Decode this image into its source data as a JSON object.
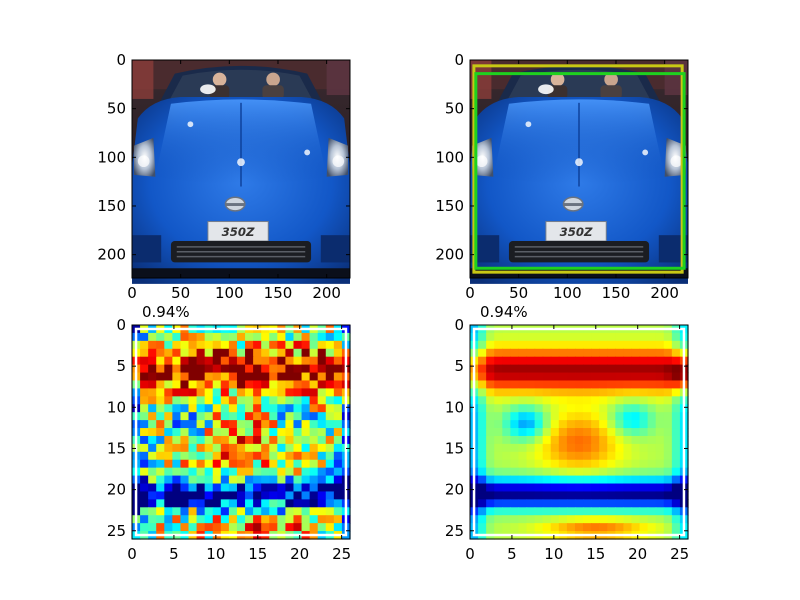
{
  "chart_data": [
    {
      "type": "image",
      "content": "photo of a blue Nissan 350Z roadster, front view, two occupants",
      "plate_text": "350Z",
      "xlim": [
        0,
        224
      ],
      "ylim": [
        224,
        0
      ],
      "xticks": [
        "0",
        "50",
        "100",
        "150",
        "200"
      ],
      "yticks": [
        "0",
        "50",
        "100",
        "150",
        "200"
      ]
    },
    {
      "type": "image",
      "content": "same car photo with bounding boxes",
      "plate_text": "350Z",
      "boxes": [
        {
          "color": "#c8c814",
          "x0": 4,
          "y0": 6,
          "x1": 218,
          "y1": 218
        },
        {
          "color": "#1fd11f",
          "x0": 6,
          "y0": 14,
          "x1": 220,
          "y1": 214
        }
      ],
      "xlim": [
        0,
        224
      ],
      "ylim": [
        224,
        0
      ],
      "xticks": [
        "0",
        "50",
        "100",
        "150",
        "200"
      ],
      "yticks": [
        "0",
        "50",
        "100",
        "150",
        "200"
      ]
    },
    {
      "type": "heatmap",
      "colormap": "jet",
      "style": "noisy",
      "annotation": "0.94%",
      "xlim": [
        0,
        26
      ],
      "ylim": [
        26,
        0
      ],
      "xticks": [
        "0",
        "5",
        "10",
        "15",
        "20",
        "25"
      ],
      "yticks": [
        "0",
        "5",
        "10",
        "15",
        "20",
        "25"
      ]
    },
    {
      "type": "heatmap",
      "colormap": "jet",
      "style": "smooth",
      "annotation": "0.94%",
      "xlim": [
        0,
        26
      ],
      "ylim": [
        26,
        0
      ],
      "xticks": [
        "0",
        "5",
        "10",
        "15",
        "20",
        "25"
      ],
      "yticks": [
        "0",
        "5",
        "10",
        "15",
        "20",
        "25"
      ]
    }
  ]
}
